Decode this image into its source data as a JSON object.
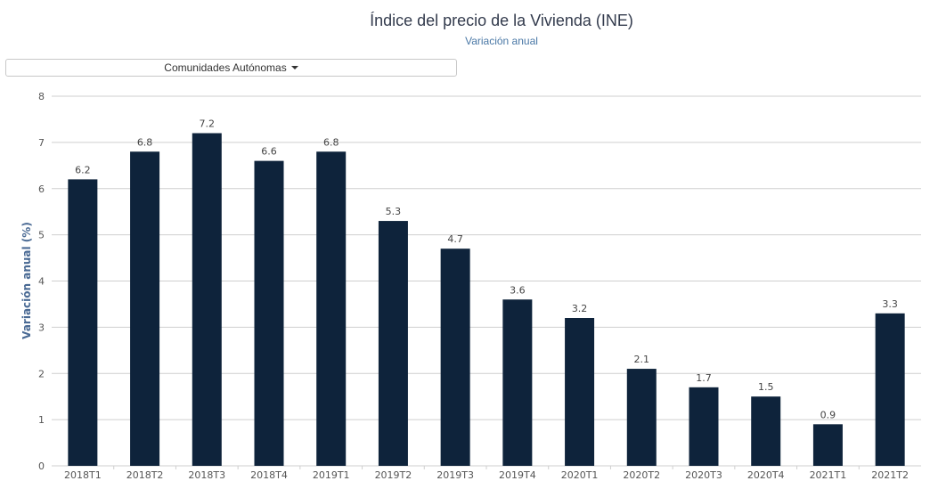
{
  "header": {
    "title": "Índice del precio de la Vivienda (INE)",
    "subtitle": "Variación anual"
  },
  "selector": {
    "label": "Comunidades Autónomas"
  },
  "colors": {
    "bar": "#0e233b",
    "grid": "#cfcfcf",
    "axis_label": "#4a6a94"
  },
  "chart_data": {
    "type": "bar",
    "title": "Índice del precio de la Vivienda (INE)",
    "subtitle": "Variación anual",
    "xlabel": "",
    "ylabel": "Variación anual (%)",
    "ylim": [
      0,
      8
    ],
    "yticks": [
      0,
      1,
      2,
      3,
      4,
      5,
      6,
      7,
      8
    ],
    "grid": true,
    "categories": [
      "2018T1",
      "2018T2",
      "2018T3",
      "2018T4",
      "2019T1",
      "2019T2",
      "2019T3",
      "2019T4",
      "2020T1",
      "2020T2",
      "2020T3",
      "2020T4",
      "2021T1",
      "2021T2"
    ],
    "values": [
      6.2,
      6.8,
      7.2,
      6.6,
      6.8,
      5.3,
      4.7,
      3.6,
      3.2,
      2.1,
      1.7,
      1.5,
      0.9,
      3.3
    ]
  }
}
